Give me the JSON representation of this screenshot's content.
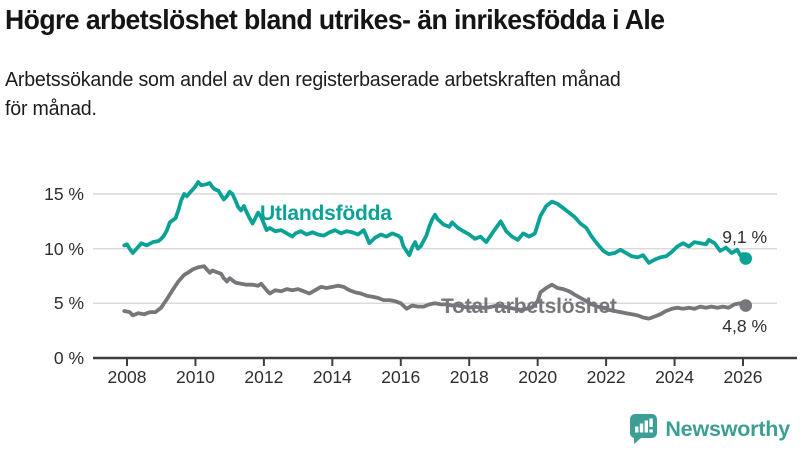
{
  "header": {
    "title": "Högre arbetslöshet bland utrikes- än inrikesfödda i Ale",
    "subtitle_lines": [
      "Arbetssökande som andel av den registerbaserade arbetskraften månad",
      "för månad."
    ]
  },
  "chart_data": {
    "type": "line",
    "title": "Högre arbetslöshet bland utrikes- än inrikesfödda i Ale",
    "subtitle": "Arbetssökande som andel av den registerbaserade arbetskraften månad för månad.",
    "xlabel": "",
    "ylabel": "",
    "grid": "horizontal-only",
    "legend_position": "inline-on-chart",
    "x_range": [
      2007.9,
      2026.6
    ],
    "ylim": [
      0,
      17
    ],
    "yticks": [
      {
        "value": 0,
        "label": "0 %"
      },
      {
        "value": 5,
        "label": "5 %"
      },
      {
        "value": 10,
        "label": "10 %"
      },
      {
        "value": 15,
        "label": "15 %"
      }
    ],
    "xticks": [
      {
        "value": 2008,
        "label": "2008"
      },
      {
        "value": 2010,
        "label": "2010"
      },
      {
        "value": 2012,
        "label": "2012"
      },
      {
        "value": 2014,
        "label": "2014"
      },
      {
        "value": 2016,
        "label": "2016"
      },
      {
        "value": 2018,
        "label": "2018"
      },
      {
        "value": 2020,
        "label": "2020"
      },
      {
        "value": 2022,
        "label": "2022"
      },
      {
        "value": 2024,
        "label": "2024"
      },
      {
        "value": 2026,
        "label": "2026"
      }
    ],
    "series": [
      {
        "name": "Utlandsfödda",
        "color": "#0ba296",
        "end_label": "9,1 %",
        "end_value": 9.1,
        "points": [
          [
            2007.92,
            10.3
          ],
          [
            2008.0,
            10.4
          ],
          [
            2008.08,
            10.0
          ],
          [
            2008.17,
            9.6
          ],
          [
            2008.25,
            9.9
          ],
          [
            2008.42,
            10.5
          ],
          [
            2008.58,
            10.3
          ],
          [
            2008.75,
            10.6
          ],
          [
            2008.92,
            10.7
          ],
          [
            2009.0,
            10.9
          ],
          [
            2009.08,
            11.2
          ],
          [
            2009.17,
            11.7
          ],
          [
            2009.25,
            12.4
          ],
          [
            2009.42,
            12.8
          ],
          [
            2009.5,
            13.5
          ],
          [
            2009.58,
            14.4
          ],
          [
            2009.67,
            15.0
          ],
          [
            2009.75,
            14.8
          ],
          [
            2009.83,
            15.1
          ],
          [
            2009.92,
            15.4
          ],
          [
            2010.0,
            15.7
          ],
          [
            2010.08,
            16.1
          ],
          [
            2010.17,
            15.8
          ],
          [
            2010.33,
            15.9
          ],
          [
            2010.42,
            16.0
          ],
          [
            2010.5,
            15.6
          ],
          [
            2010.58,
            15.4
          ],
          [
            2010.67,
            15.3
          ],
          [
            2010.75,
            14.9
          ],
          [
            2010.83,
            14.5
          ],
          [
            2010.92,
            14.8
          ],
          [
            2011.0,
            15.2
          ],
          [
            2011.08,
            15.0
          ],
          [
            2011.17,
            14.4
          ],
          [
            2011.25,
            13.8
          ],
          [
            2011.33,
            13.5
          ],
          [
            2011.42,
            13.9
          ],
          [
            2011.5,
            13.3
          ],
          [
            2011.58,
            12.8
          ],
          [
            2011.67,
            12.3
          ],
          [
            2011.75,
            12.8
          ],
          [
            2011.83,
            13.3
          ],
          [
            2011.92,
            12.9
          ],
          [
            2012.0,
            12.3
          ],
          [
            2012.08,
            11.7
          ],
          [
            2012.17,
            11.9
          ],
          [
            2012.33,
            11.6
          ],
          [
            2012.5,
            11.7
          ],
          [
            2012.67,
            11.4
          ],
          [
            2012.83,
            11.1
          ],
          [
            2012.92,
            11.4
          ],
          [
            2013.08,
            11.6
          ],
          [
            2013.25,
            11.3
          ],
          [
            2013.42,
            11.5
          ],
          [
            2013.58,
            11.3
          ],
          [
            2013.75,
            11.2
          ],
          [
            2013.92,
            11.5
          ],
          [
            2014.08,
            11.7
          ],
          [
            2014.25,
            11.4
          ],
          [
            2014.42,
            11.6
          ],
          [
            2014.58,
            11.5
          ],
          [
            2014.75,
            11.3
          ],
          [
            2014.92,
            11.7
          ],
          [
            2015.0,
            11.1
          ],
          [
            2015.08,
            10.5
          ],
          [
            2015.25,
            11.0
          ],
          [
            2015.42,
            11.3
          ],
          [
            2015.58,
            11.1
          ],
          [
            2015.75,
            11.4
          ],
          [
            2015.92,
            11.2
          ],
          [
            2016.0,
            11.0
          ],
          [
            2016.08,
            10.2
          ],
          [
            2016.25,
            9.4
          ],
          [
            2016.33,
            10.1
          ],
          [
            2016.42,
            10.6
          ],
          [
            2016.5,
            10.0
          ],
          [
            2016.58,
            10.2
          ],
          [
            2016.75,
            11.2
          ],
          [
            2016.83,
            12.0
          ],
          [
            2016.92,
            12.7
          ],
          [
            2017.0,
            13.1
          ],
          [
            2017.08,
            12.7
          ],
          [
            2017.25,
            12.2
          ],
          [
            2017.42,
            12.0
          ],
          [
            2017.5,
            12.4
          ],
          [
            2017.67,
            11.9
          ],
          [
            2017.83,
            11.6
          ],
          [
            2018.0,
            11.3
          ],
          [
            2018.17,
            10.9
          ],
          [
            2018.33,
            11.1
          ],
          [
            2018.5,
            10.6
          ],
          [
            2018.67,
            11.4
          ],
          [
            2018.83,
            12.1
          ],
          [
            2018.92,
            12.5
          ],
          [
            2019.08,
            11.6
          ],
          [
            2019.25,
            11.1
          ],
          [
            2019.42,
            10.8
          ],
          [
            2019.58,
            11.4
          ],
          [
            2019.75,
            11.1
          ],
          [
            2019.92,
            11.4
          ],
          [
            2020.0,
            12.2
          ],
          [
            2020.08,
            13.0
          ],
          [
            2020.25,
            13.9
          ],
          [
            2020.42,
            14.3
          ],
          [
            2020.58,
            14.1
          ],
          [
            2020.75,
            13.7
          ],
          [
            2020.92,
            13.3
          ],
          [
            2021.08,
            12.9
          ],
          [
            2021.25,
            12.3
          ],
          [
            2021.42,
            11.9
          ],
          [
            2021.58,
            11.1
          ],
          [
            2021.75,
            10.4
          ],
          [
            2021.92,
            9.8
          ],
          [
            2022.08,
            9.5
          ],
          [
            2022.25,
            9.6
          ],
          [
            2022.42,
            9.9
          ],
          [
            2022.58,
            9.6
          ],
          [
            2022.75,
            9.3
          ],
          [
            2022.92,
            9.2
          ],
          [
            2023.08,
            9.4
          ],
          [
            2023.25,
            8.7
          ],
          [
            2023.42,
            9.0
          ],
          [
            2023.58,
            9.2
          ],
          [
            2023.75,
            9.3
          ],
          [
            2023.92,
            9.7
          ],
          [
            2024.08,
            10.2
          ],
          [
            2024.25,
            10.5
          ],
          [
            2024.42,
            10.2
          ],
          [
            2024.58,
            10.6
          ],
          [
            2024.75,
            10.5
          ],
          [
            2024.92,
            10.4
          ],
          [
            2025.0,
            10.8
          ],
          [
            2025.17,
            10.5
          ],
          [
            2025.33,
            9.8
          ],
          [
            2025.5,
            10.1
          ],
          [
            2025.67,
            9.6
          ],
          [
            2025.83,
            9.9
          ],
          [
            2025.92,
            9.4
          ],
          [
            2026.0,
            9.5
          ],
          [
            2026.08,
            9.1
          ]
        ]
      },
      {
        "name": "Total arbetslöshet",
        "color": "#76767b",
        "end_label": "4,8 %",
        "end_value": 4.8,
        "points": [
          [
            2007.92,
            4.3
          ],
          [
            2008.08,
            4.2
          ],
          [
            2008.17,
            3.9
          ],
          [
            2008.33,
            4.1
          ],
          [
            2008.5,
            4.0
          ],
          [
            2008.67,
            4.2
          ],
          [
            2008.83,
            4.2
          ],
          [
            2009.0,
            4.6
          ],
          [
            2009.08,
            5.0
          ],
          [
            2009.17,
            5.4
          ],
          [
            2009.33,
            6.2
          ],
          [
            2009.5,
            7.0
          ],
          [
            2009.67,
            7.6
          ],
          [
            2009.83,
            7.9
          ],
          [
            2009.92,
            8.1
          ],
          [
            2010.08,
            8.3
          ],
          [
            2010.25,
            8.4
          ],
          [
            2010.42,
            7.8
          ],
          [
            2010.5,
            8.0
          ],
          [
            2010.58,
            7.9
          ],
          [
            2010.75,
            7.7
          ],
          [
            2010.83,
            7.3
          ],
          [
            2010.92,
            7.0
          ],
          [
            2011.0,
            7.3
          ],
          [
            2011.17,
            6.9
          ],
          [
            2011.33,
            6.8
          ],
          [
            2011.5,
            6.7
          ],
          [
            2011.67,
            6.7
          ],
          [
            2011.83,
            6.6
          ],
          [
            2011.92,
            6.8
          ],
          [
            2012.08,
            6.2
          ],
          [
            2012.17,
            5.9
          ],
          [
            2012.33,
            6.2
          ],
          [
            2012.5,
            6.1
          ],
          [
            2012.67,
            6.3
          ],
          [
            2012.83,
            6.2
          ],
          [
            2013.0,
            6.3
          ],
          [
            2013.17,
            6.1
          ],
          [
            2013.33,
            5.9
          ],
          [
            2013.5,
            6.2
          ],
          [
            2013.67,
            6.5
          ],
          [
            2013.83,
            6.4
          ],
          [
            2014.0,
            6.5
          ],
          [
            2014.17,
            6.6
          ],
          [
            2014.33,
            6.5
          ],
          [
            2014.5,
            6.2
          ],
          [
            2014.67,
            6.0
          ],
          [
            2014.83,
            5.9
          ],
          [
            2015.0,
            5.7
          ],
          [
            2015.17,
            5.6
          ],
          [
            2015.33,
            5.5
          ],
          [
            2015.5,
            5.3
          ],
          [
            2015.67,
            5.3
          ],
          [
            2015.83,
            5.2
          ],
          [
            2016.0,
            5.0
          ],
          [
            2016.17,
            4.5
          ],
          [
            2016.33,
            4.8
          ],
          [
            2016.5,
            4.7
          ],
          [
            2016.67,
            4.7
          ],
          [
            2016.83,
            4.9
          ],
          [
            2017.0,
            5.0
          ],
          [
            2017.17,
            4.9
          ],
          [
            2017.33,
            4.9
          ],
          [
            2017.5,
            4.8
          ],
          [
            2017.67,
            4.8
          ],
          [
            2017.83,
            4.7
          ],
          [
            2018.0,
            4.6
          ],
          [
            2018.17,
            4.7
          ],
          [
            2018.33,
            4.6
          ],
          [
            2018.5,
            4.6
          ],
          [
            2018.67,
            4.7
          ],
          [
            2018.83,
            4.8
          ],
          [
            2019.0,
            4.7
          ],
          [
            2019.17,
            4.6
          ],
          [
            2019.33,
            4.5
          ],
          [
            2019.5,
            4.4
          ],
          [
            2019.67,
            4.5
          ],
          [
            2019.83,
            4.6
          ],
          [
            2020.0,
            5.2
          ],
          [
            2020.08,
            6.0
          ],
          [
            2020.25,
            6.4
          ],
          [
            2020.42,
            6.7
          ],
          [
            2020.58,
            6.4
          ],
          [
            2020.75,
            6.3
          ],
          [
            2020.92,
            6.1
          ],
          [
            2021.08,
            5.8
          ],
          [
            2021.25,
            5.5
          ],
          [
            2021.42,
            5.2
          ],
          [
            2021.58,
            4.9
          ],
          [
            2021.75,
            4.7
          ],
          [
            2021.92,
            4.6
          ],
          [
            2022.08,
            4.4
          ],
          [
            2022.25,
            4.3
          ],
          [
            2022.42,
            4.2
          ],
          [
            2022.58,
            4.1
          ],
          [
            2022.75,
            4.0
          ],
          [
            2022.92,
            3.9
          ],
          [
            2023.08,
            3.7
          ],
          [
            2023.25,
            3.6
          ],
          [
            2023.42,
            3.8
          ],
          [
            2023.58,
            4.0
          ],
          [
            2023.75,
            4.3
          ],
          [
            2023.92,
            4.5
          ],
          [
            2024.08,
            4.6
          ],
          [
            2024.25,
            4.5
          ],
          [
            2024.42,
            4.6
          ],
          [
            2024.58,
            4.5
          ],
          [
            2024.75,
            4.7
          ],
          [
            2024.92,
            4.6
          ],
          [
            2025.08,
            4.7
          ],
          [
            2025.25,
            4.6
          ],
          [
            2025.42,
            4.7
          ],
          [
            2025.58,
            4.6
          ],
          [
            2025.75,
            4.9
          ],
          [
            2025.92,
            5.0
          ],
          [
            2026.08,
            4.8
          ]
        ]
      }
    ]
  },
  "footer": {
    "brand": "Newsworthy",
    "logo_icon": "bar-chart-speech-bubble-icon",
    "brand_color": "#3d9e95"
  },
  "colors": {
    "background": "#ffffff",
    "title_text": "#151515",
    "tick_text": "#2e2e2e",
    "gridline": "#d9d9d9",
    "axis": "#3e3e3e",
    "series_foreign_born": "#0ba296",
    "series_total": "#76767b"
  }
}
